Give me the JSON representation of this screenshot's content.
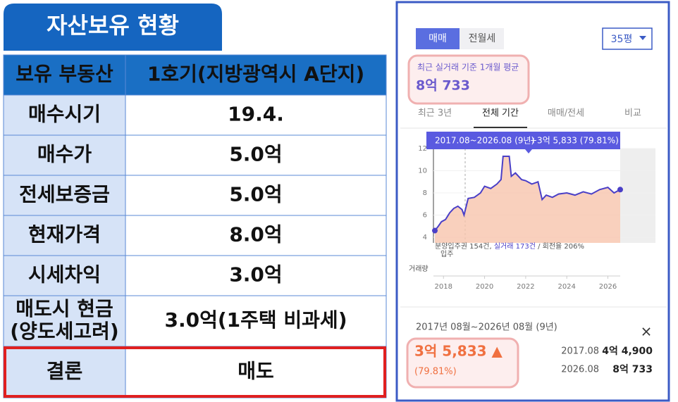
{
  "title": "자산보유 현황",
  "table": {
    "header": [
      "보유 부동산",
      "1호기(지방광역시 A단지)"
    ],
    "rows": [
      [
        "매수시기",
        "19.4."
      ],
      [
        "매수가",
        "5.0억"
      ],
      [
        "전세보증금",
        "5.0억"
      ],
      [
        "현재가격",
        "8.0억"
      ],
      [
        "시세차익",
        "3.0억"
      ],
      [
        [
          "매도시 현금",
          "(양도세고려)"
        ],
        "3.0억(1주택 비과세)"
      ],
      [
        "결론",
        "매도"
      ]
    ]
  },
  "panel": {
    "tabs": [
      "매매",
      "전월세"
    ],
    "size": "35평",
    "avg_label": "최근 실거래 기준 1개월 평균",
    "avg_value": "8억 733",
    "periods": [
      "최근 3년",
      "전체 기간",
      "매매/전세",
      "비교"
    ],
    "summary": {
      "period": "2017년 08월~2026년 08월 (9년)",
      "close": "×",
      "change": "3억 5,833 ▲",
      "change_pct": "(79.81%)",
      "start_date": "2017.08",
      "start_price": "4억 4,900",
      "end_date": "2026.08",
      "end_price": "8억 733"
    }
  },
  "chart_data": {
    "type": "line",
    "tooltip_range": "2017.08~2026.08 (9년)",
    "tooltip_change": "+3억 5,833 (79.81%)",
    "volume_note": [
      "분양입주권 154건, ",
      "실거래 173건",
      " / 회전율 206%"
    ],
    "volume_sub": "입주",
    "volume_label": "거래량",
    "color": "#4a3fc7",
    "fill_color": "#f7c4ad",
    "x": [
      2017.58,
      2017.75,
      2017.9,
      2018.1,
      2018.3,
      2018.5,
      2018.7,
      2018.9,
      2019.0,
      2019.2,
      2019.5,
      2019.8,
      2020.0,
      2020.3,
      2020.6,
      2020.8,
      2020.9,
      2021.2,
      2021.3,
      2021.5,
      2021.8,
      2022.0,
      2022.3,
      2022.6,
      2022.8,
      2023.0,
      2023.3,
      2023.6,
      2024.0,
      2024.4,
      2024.8,
      2025.2,
      2025.6,
      2026.0,
      2026.3,
      2026.6
    ],
    "values": [
      4.6,
      5.0,
      5.4,
      5.6,
      6.2,
      6.6,
      6.8,
      6.5,
      6.0,
      7.5,
      7.6,
      8.0,
      8.6,
      8.4,
      8.8,
      9.2,
      11.3,
      11.3,
      9.5,
      9.8,
      9.2,
      9.1,
      8.8,
      9.0,
      7.4,
      7.8,
      7.6,
      7.9,
      8.0,
      7.8,
      8.1,
      7.9,
      8.3,
      8.5,
      8.0,
      8.3
    ],
    "xlim": [
      2017.58,
      2026.6
    ],
    "xticks": [
      2018,
      2020,
      2022,
      2024,
      2026
    ],
    "ylim": [
      4,
      12
    ],
    "yticks": [
      4,
      6,
      8,
      10,
      12
    ],
    "grid": true
  }
}
